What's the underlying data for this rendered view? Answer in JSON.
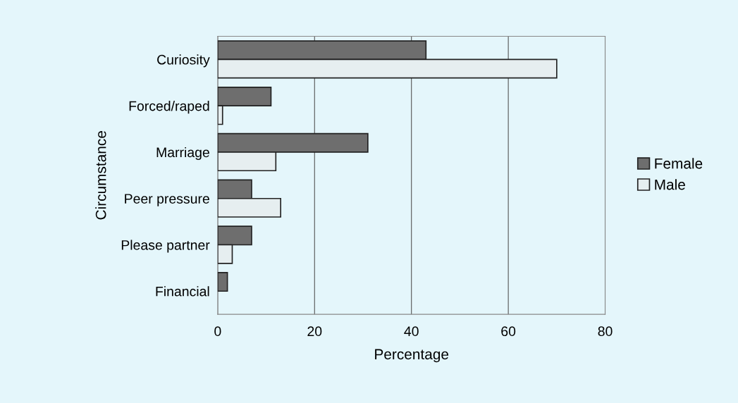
{
  "chart_data": {
    "type": "bar",
    "orientation": "horizontal",
    "xlabel": "Percentage",
    "ylabel": "Circumstance",
    "categories": [
      "Curiosity",
      "Forced/raped",
      "Marriage",
      "Peer pressure",
      "Please partner",
      "Financial"
    ],
    "series": [
      {
        "name": "Female",
        "color": "#6e6e6e",
        "values": [
          43,
          11,
          31,
          7,
          7,
          2
        ]
      },
      {
        "name": "Male",
        "color": "#e6eef0",
        "values": [
          70,
          1,
          12,
          13,
          3,
          null
        ]
      }
    ],
    "xlim": [
      0,
      80
    ],
    "xticks": [
      0,
      20,
      40,
      60,
      80
    ],
    "grid": "x",
    "legend": "right"
  }
}
